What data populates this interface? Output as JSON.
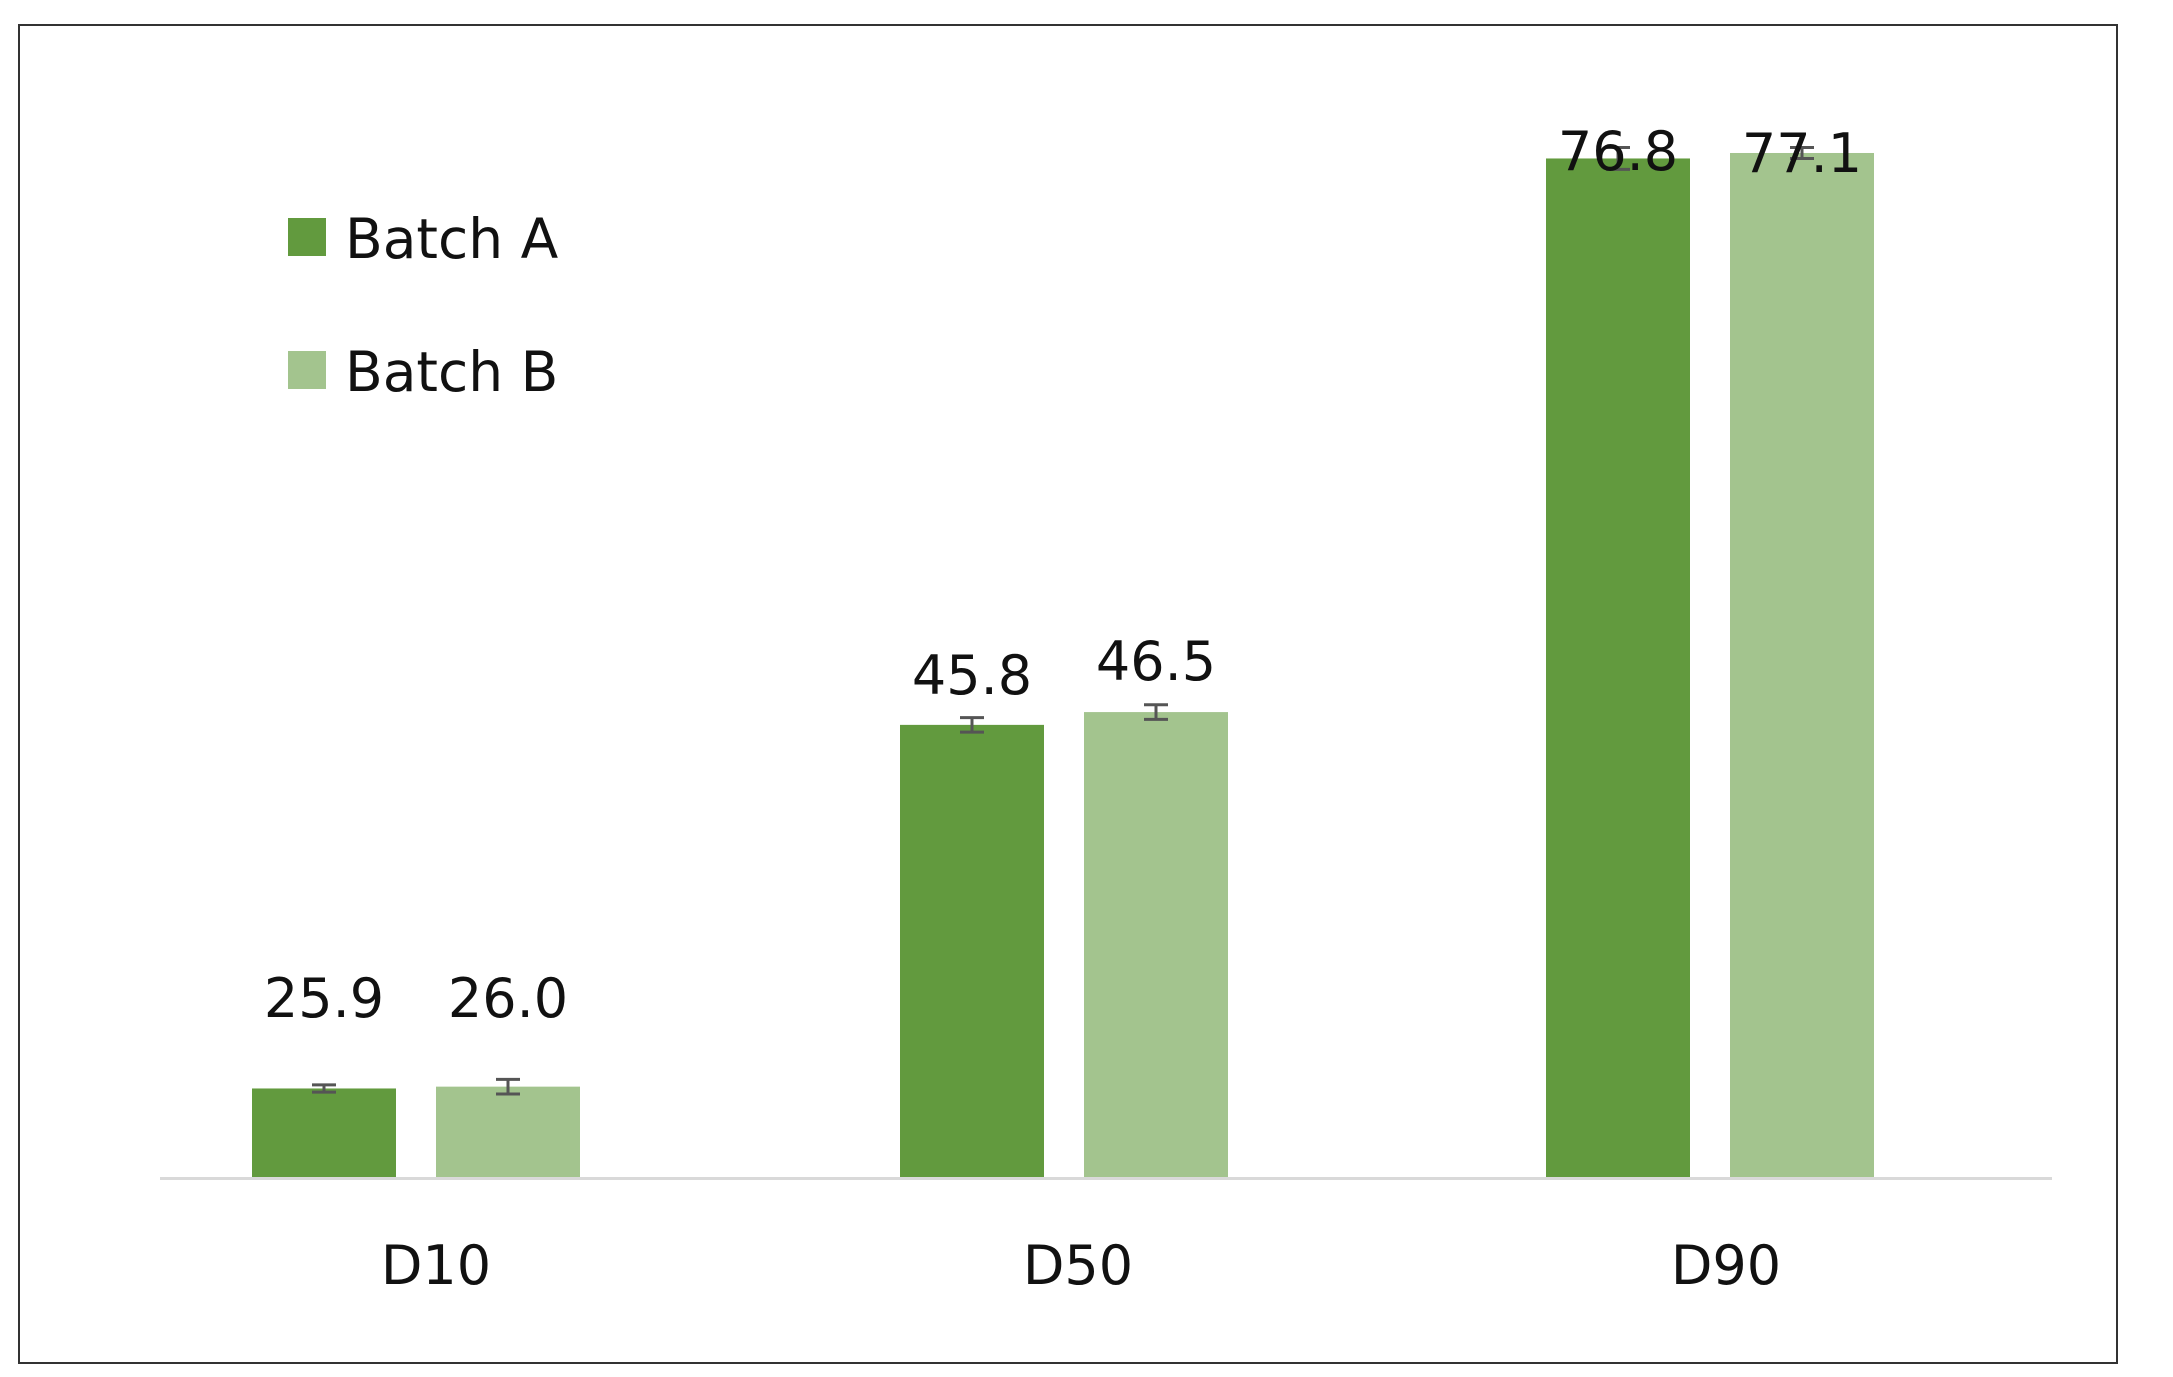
{
  "chart_data": {
    "type": "bar",
    "categories": [
      "D10",
      "D50",
      "D90"
    ],
    "series": [
      {
        "name": "Batch A",
        "values": [
          25.9,
          45.8,
          76.8
        ],
        "errors": [
          0.2,
          0.4,
          0.6
        ],
        "color": "#629a3e"
      },
      {
        "name": "Batch B",
        "values": [
          26.0,
          46.5,
          77.1
        ],
        "errors": [
          0.4,
          0.4,
          0.3
        ],
        "color": "#a3c48e"
      }
    ],
    "title": "",
    "xlabel": "",
    "ylabel": "",
    "ylim": [
      21,
      80
    ],
    "grid": false,
    "legend_position": "top-left",
    "data_labels": [
      "25.9",
      "26.0",
      "45.8",
      "46.5",
      "76.8",
      "77.1"
    ],
    "error_bar_color": "#555555",
    "baseline_color": "#d9d9d9"
  }
}
